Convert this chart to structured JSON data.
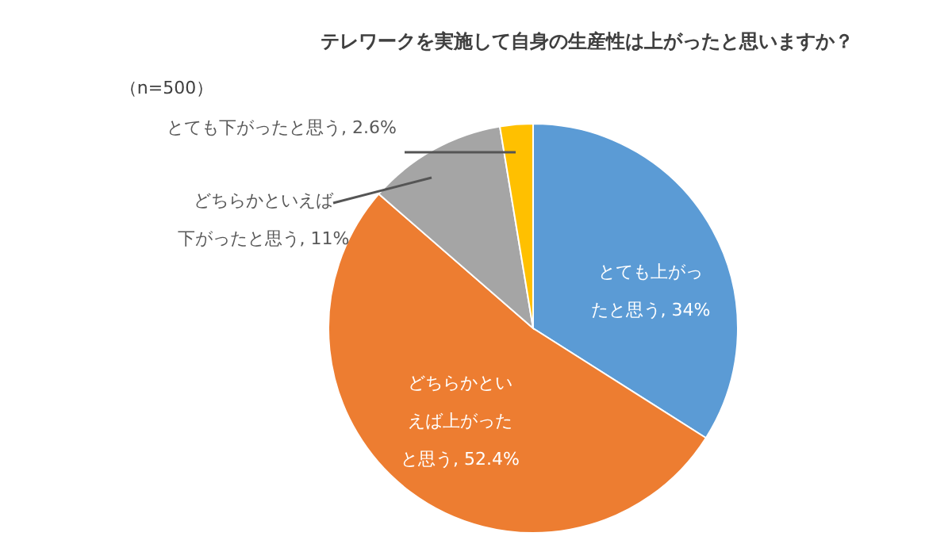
{
  "chart_data": {
    "type": "pie",
    "title": "テレワークを実施して自身の生産性は上がったと思いますか？",
    "subtitle": "（n=500）",
    "categories": [
      "とても上がったと思う",
      "どちらかといえば上がったと思う",
      "どちらかといえば下がったと思う",
      "とても下がったと思う"
    ],
    "values": [
      34,
      52.4,
      11,
      2.6
    ],
    "value_labels": [
      "34%",
      "52.4%",
      "11%",
      "2.6%"
    ],
    "colors": [
      "#5b9bd5",
      "#ed7d31",
      "#a5a5a5",
      "#ffc000"
    ]
  }
}
